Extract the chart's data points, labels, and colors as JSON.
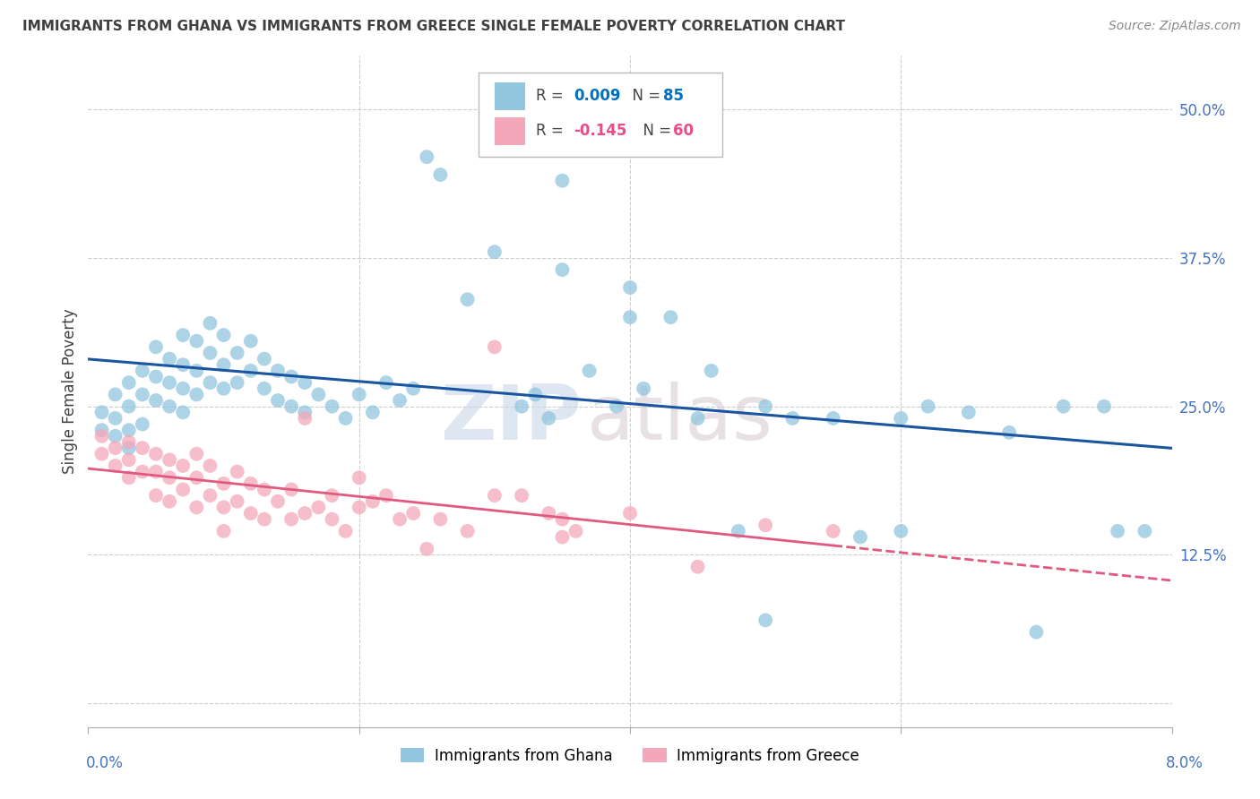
{
  "title": "IMMIGRANTS FROM GHANA VS IMMIGRANTS FROM GREECE SINGLE FEMALE POVERTY CORRELATION CHART",
  "source": "Source: ZipAtlas.com",
  "ylabel": "Single Female Poverty",
  "yticks": [
    0.0,
    0.125,
    0.25,
    0.375,
    0.5
  ],
  "ytick_labels": [
    "",
    "12.5%",
    "25.0%",
    "37.5%",
    "50.0%"
  ],
  "xrange": [
    0.0,
    0.08
  ],
  "yrange": [
    -0.02,
    0.545
  ],
  "ghana_color": "#92c5de",
  "greece_color": "#f4a7b9",
  "ghana_line_color": "#1a56a0",
  "greece_line_color": "#e05a80",
  "R_ghana": 0.009,
  "N_ghana": 85,
  "R_greece": -0.145,
  "N_greece": 60,
  "ghana_scatter_x": [
    0.001,
    0.001,
    0.002,
    0.002,
    0.002,
    0.003,
    0.003,
    0.003,
    0.003,
    0.004,
    0.004,
    0.004,
    0.005,
    0.005,
    0.005,
    0.006,
    0.006,
    0.006,
    0.007,
    0.007,
    0.007,
    0.007,
    0.008,
    0.008,
    0.008,
    0.009,
    0.009,
    0.009,
    0.01,
    0.01,
    0.01,
    0.011,
    0.011,
    0.012,
    0.012,
    0.013,
    0.013,
    0.014,
    0.014,
    0.015,
    0.015,
    0.016,
    0.016,
    0.017,
    0.018,
    0.019,
    0.02,
    0.021,
    0.022,
    0.023,
    0.024,
    0.025,
    0.026,
    0.028,
    0.03,
    0.032,
    0.033,
    0.034,
    0.035,
    0.037,
    0.039,
    0.04,
    0.041,
    0.043,
    0.045,
    0.046,
    0.048,
    0.05,
    0.052,
    0.055,
    0.057,
    0.06,
    0.062,
    0.065,
    0.068,
    0.07,
    0.072,
    0.075,
    0.076,
    0.078,
    0.03,
    0.035,
    0.04,
    0.05,
    0.06
  ],
  "ghana_scatter_y": [
    0.245,
    0.23,
    0.26,
    0.24,
    0.225,
    0.27,
    0.25,
    0.23,
    0.215,
    0.28,
    0.26,
    0.235,
    0.3,
    0.275,
    0.255,
    0.29,
    0.27,
    0.25,
    0.31,
    0.285,
    0.265,
    0.245,
    0.305,
    0.28,
    0.26,
    0.32,
    0.295,
    0.27,
    0.31,
    0.285,
    0.265,
    0.295,
    0.27,
    0.305,
    0.28,
    0.29,
    0.265,
    0.28,
    0.255,
    0.275,
    0.25,
    0.27,
    0.245,
    0.26,
    0.25,
    0.24,
    0.26,
    0.245,
    0.27,
    0.255,
    0.265,
    0.46,
    0.445,
    0.34,
    0.38,
    0.25,
    0.26,
    0.24,
    0.365,
    0.28,
    0.25,
    0.35,
    0.265,
    0.325,
    0.24,
    0.28,
    0.145,
    0.25,
    0.24,
    0.24,
    0.14,
    0.24,
    0.25,
    0.245,
    0.228,
    0.06,
    0.25,
    0.25,
    0.145,
    0.145,
    0.49,
    0.44,
    0.325,
    0.07,
    0.145
  ],
  "greece_scatter_x": [
    0.001,
    0.001,
    0.002,
    0.002,
    0.003,
    0.003,
    0.003,
    0.004,
    0.004,
    0.005,
    0.005,
    0.005,
    0.006,
    0.006,
    0.006,
    0.007,
    0.007,
    0.008,
    0.008,
    0.008,
    0.009,
    0.009,
    0.01,
    0.01,
    0.01,
    0.011,
    0.011,
    0.012,
    0.012,
    0.013,
    0.013,
    0.014,
    0.015,
    0.015,
    0.016,
    0.017,
    0.018,
    0.019,
    0.02,
    0.021,
    0.022,
    0.023,
    0.024,
    0.026,
    0.028,
    0.03,
    0.032,
    0.034,
    0.035,
    0.036,
    0.016,
    0.018,
    0.02,
    0.025,
    0.03,
    0.035,
    0.04,
    0.045,
    0.05,
    0.055
  ],
  "greece_scatter_y": [
    0.225,
    0.21,
    0.215,
    0.2,
    0.22,
    0.205,
    0.19,
    0.215,
    0.195,
    0.21,
    0.195,
    0.175,
    0.205,
    0.19,
    0.17,
    0.2,
    0.18,
    0.21,
    0.19,
    0.165,
    0.2,
    0.175,
    0.185,
    0.165,
    0.145,
    0.195,
    0.17,
    0.185,
    0.16,
    0.18,
    0.155,
    0.17,
    0.18,
    0.155,
    0.16,
    0.165,
    0.155,
    0.145,
    0.19,
    0.17,
    0.175,
    0.155,
    0.16,
    0.155,
    0.145,
    0.3,
    0.175,
    0.16,
    0.155,
    0.145,
    0.24,
    0.175,
    0.165,
    0.13,
    0.175,
    0.14,
    0.16,
    0.115,
    0.15,
    0.145
  ],
  "watermark_zip": "ZIP",
  "watermark_atlas": "atlas",
  "background_color": "#ffffff",
  "grid_color": "#cccccc",
  "title_color": "#404040",
  "axis_right_color": "#4472c4",
  "legend_r_ghana_color": "#0070c0",
  "legend_r_greece_color": "#e84d8a",
  "legend_n_color": "#0070c0",
  "legend_n_greece_color": "#e84d8a"
}
